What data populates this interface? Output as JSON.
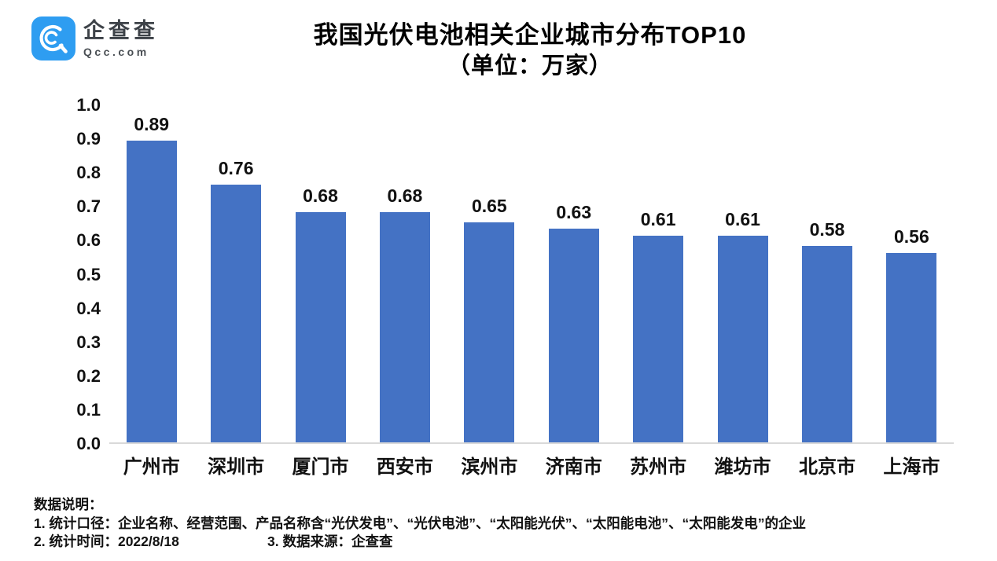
{
  "logo": {
    "name": "企查查",
    "domain": "Qcc.com",
    "brand_color": "#2e9df1"
  },
  "title": {
    "line1": "我国光伏电池相关企业城市分布TOP10",
    "line2": "（单位：万家）"
  },
  "chart_data": {
    "type": "bar",
    "title": "我国光伏电池相关企业城市分布TOP10（单位：万家）",
    "categories": [
      "广州市",
      "深圳市",
      "厦门市",
      "西安市",
      "滨州市",
      "济南市",
      "苏州市",
      "潍坊市",
      "北京市",
      "上海市"
    ],
    "values": [
      0.89,
      0.76,
      0.68,
      0.68,
      0.65,
      0.63,
      0.61,
      0.61,
      0.58,
      0.56
    ],
    "value_labels": [
      "0.89",
      "0.76",
      "0.68",
      "0.68",
      "0.65",
      "0.63",
      "0.61",
      "0.61",
      "0.58",
      "0.56"
    ],
    "xlabel": "",
    "ylabel": "",
    "ylim": [
      0,
      1.0
    ],
    "ytick_step": 0.1,
    "yticks": [
      "1.0",
      "0.9",
      "0.8",
      "0.7",
      "0.6",
      "0.5",
      "0.4",
      "0.3",
      "0.2",
      "0.1",
      "0.0"
    ],
    "bar_color": "#4472c4",
    "grid": false,
    "legend": null
  },
  "notes": {
    "heading": "数据说明：",
    "line1": "1. 统计口径：企业名称、经营范围、产品名称含“光伏发电”、“光伏电池”、“太阳能光伏”、“太阳能电池”、“太阳能发电”的企业",
    "line2_left": "2. 统计时间：2022/8/18",
    "line2_right": "3. 数据来源：企查查"
  }
}
